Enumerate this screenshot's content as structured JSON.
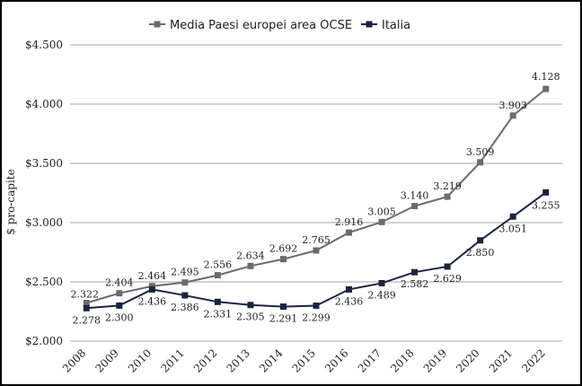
{
  "chart_data": {
    "type": "line",
    "title": "",
    "xlabel": "",
    "ylabel": "$ pro-capite",
    "x": [
      "2008",
      "2009",
      "2010",
      "2011",
      "2012",
      "2013",
      "2014",
      "2015",
      "2016",
      "2017",
      "2018",
      "2019",
      "2020",
      "2021",
      "2022"
    ],
    "ylim": [
      2000,
      4500
    ],
    "y_ticks": [
      {
        "value": 2000,
        "label": "$2.000"
      },
      {
        "value": 2500,
        "label": "$2.500"
      },
      {
        "value": 3000,
        "label": "$3.000"
      },
      {
        "value": 3500,
        "label": "$3.500"
      },
      {
        "value": 4000,
        "label": "$4.000"
      },
      {
        "value": 4500,
        "label": "$4.500"
      }
    ],
    "grid": true,
    "legend_position": "top",
    "series": [
      {
        "name": "Media Paesi europei area OCSE",
        "color": "#6b6b6b",
        "values": [
          2322,
          2404,
          2464,
          2495,
          2556,
          2634,
          2692,
          2765,
          2916,
          3005,
          3140,
          3219,
          3509,
          3903,
          4128
        ],
        "labels": [
          "2.322",
          "2.404",
          "2.464",
          "2.495",
          "2.556",
          "2.634",
          "2.692",
          "2.765",
          "2.916",
          "3.005",
          "3.140",
          "3.219",
          "3.509",
          "3.903",
          "4.128"
        ]
      },
      {
        "name": "Italia",
        "color": "#1a2440",
        "values": [
          2278,
          2300,
          2436,
          2386,
          2331,
          2305,
          2291,
          2299,
          2436,
          2489,
          2582,
          2629,
          2850,
          3051,
          3255
        ],
        "labels": [
          "2.278",
          "2.300",
          "2.436",
          "2.386",
          "2.331",
          "2.305",
          "2.291",
          "2.299",
          "2.436",
          "2.489",
          "2.582",
          "2.629",
          "2.850",
          "3.051",
          "3.255"
        ]
      }
    ]
  }
}
